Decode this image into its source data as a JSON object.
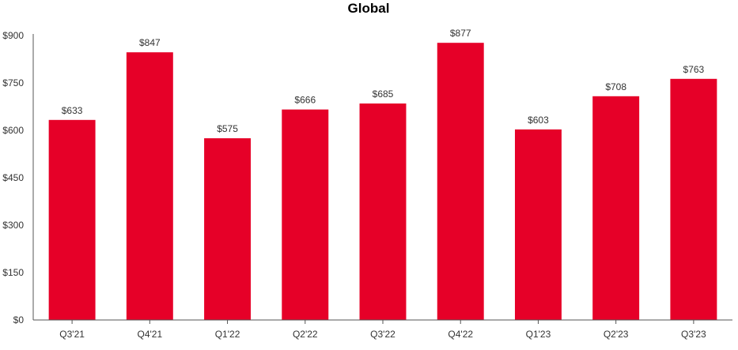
{
  "chart_data": {
    "type": "bar",
    "title": "Global",
    "xlabel": "",
    "ylabel": "",
    "categories": [
      "Q3'21",
      "Q4'21",
      "Q1'22",
      "Q2'22",
      "Q3'22",
      "Q4'22",
      "Q1'23",
      "Q2'23",
      "Q3'23"
    ],
    "values": [
      633,
      847,
      575,
      666,
      685,
      877,
      603,
      708,
      763
    ],
    "data_labels": [
      "$633",
      "$847",
      "$575",
      "$666",
      "$685",
      "$877",
      "$603",
      "$708",
      "$763"
    ],
    "yticks": [
      0,
      150,
      300,
      450,
      600,
      750,
      900
    ],
    "ytick_labels": [
      "$0",
      "$150",
      "$300",
      "$450",
      "$600",
      "$750",
      "$900"
    ],
    "ylim": [
      0,
      900
    ],
    "grid": false,
    "legend": "none",
    "bar_color": "#e60028",
    "axis_color": "#555555"
  }
}
